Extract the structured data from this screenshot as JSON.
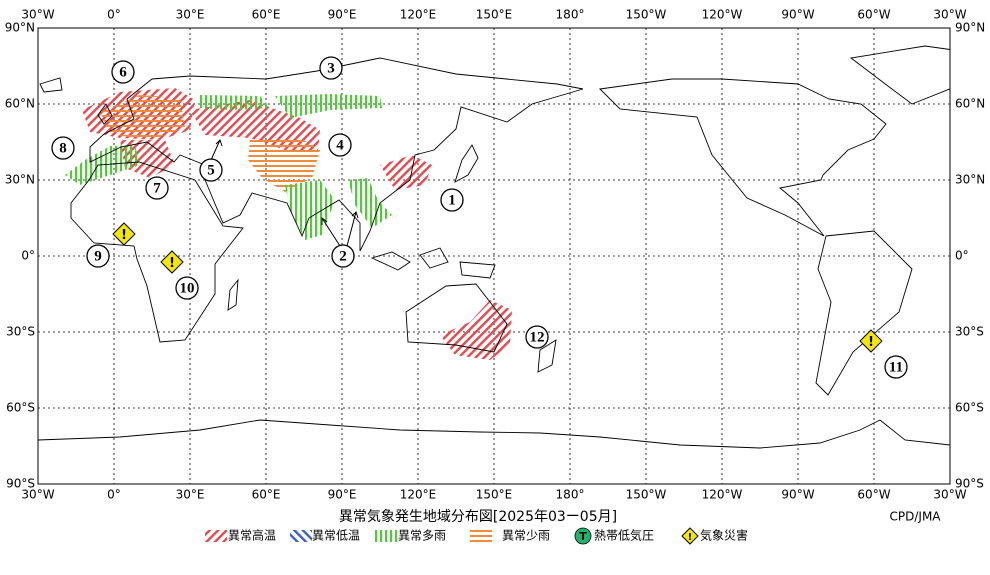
{
  "title": "異常気象発生地域分布図[2025年03ー05月]",
  "credit": "CPD/JMA",
  "longitude_labels": [
    "30°W",
    "0°",
    "30°E",
    "60°E",
    "90°E",
    "120°E",
    "150°E",
    "180°",
    "150°W",
    "120°W",
    "90°W",
    "60°W",
    "30°W"
  ],
  "latitude_labels": [
    "90°N",
    "60°N",
    "30°N",
    "0°",
    "30°S",
    "60°S",
    "90°S"
  ],
  "region_markers": [
    "1",
    "2",
    "3",
    "4",
    "5",
    "6",
    "7",
    "8",
    "9",
    "10",
    "11",
    "12"
  ],
  "warning_symbol": "!",
  "legend": [
    "異常高温",
    "異常低温",
    "異常多雨",
    "異常少雨",
    "熱帯低気圧",
    "気象災害"
  ],
  "tropical_cyclone_icon": "T"
}
